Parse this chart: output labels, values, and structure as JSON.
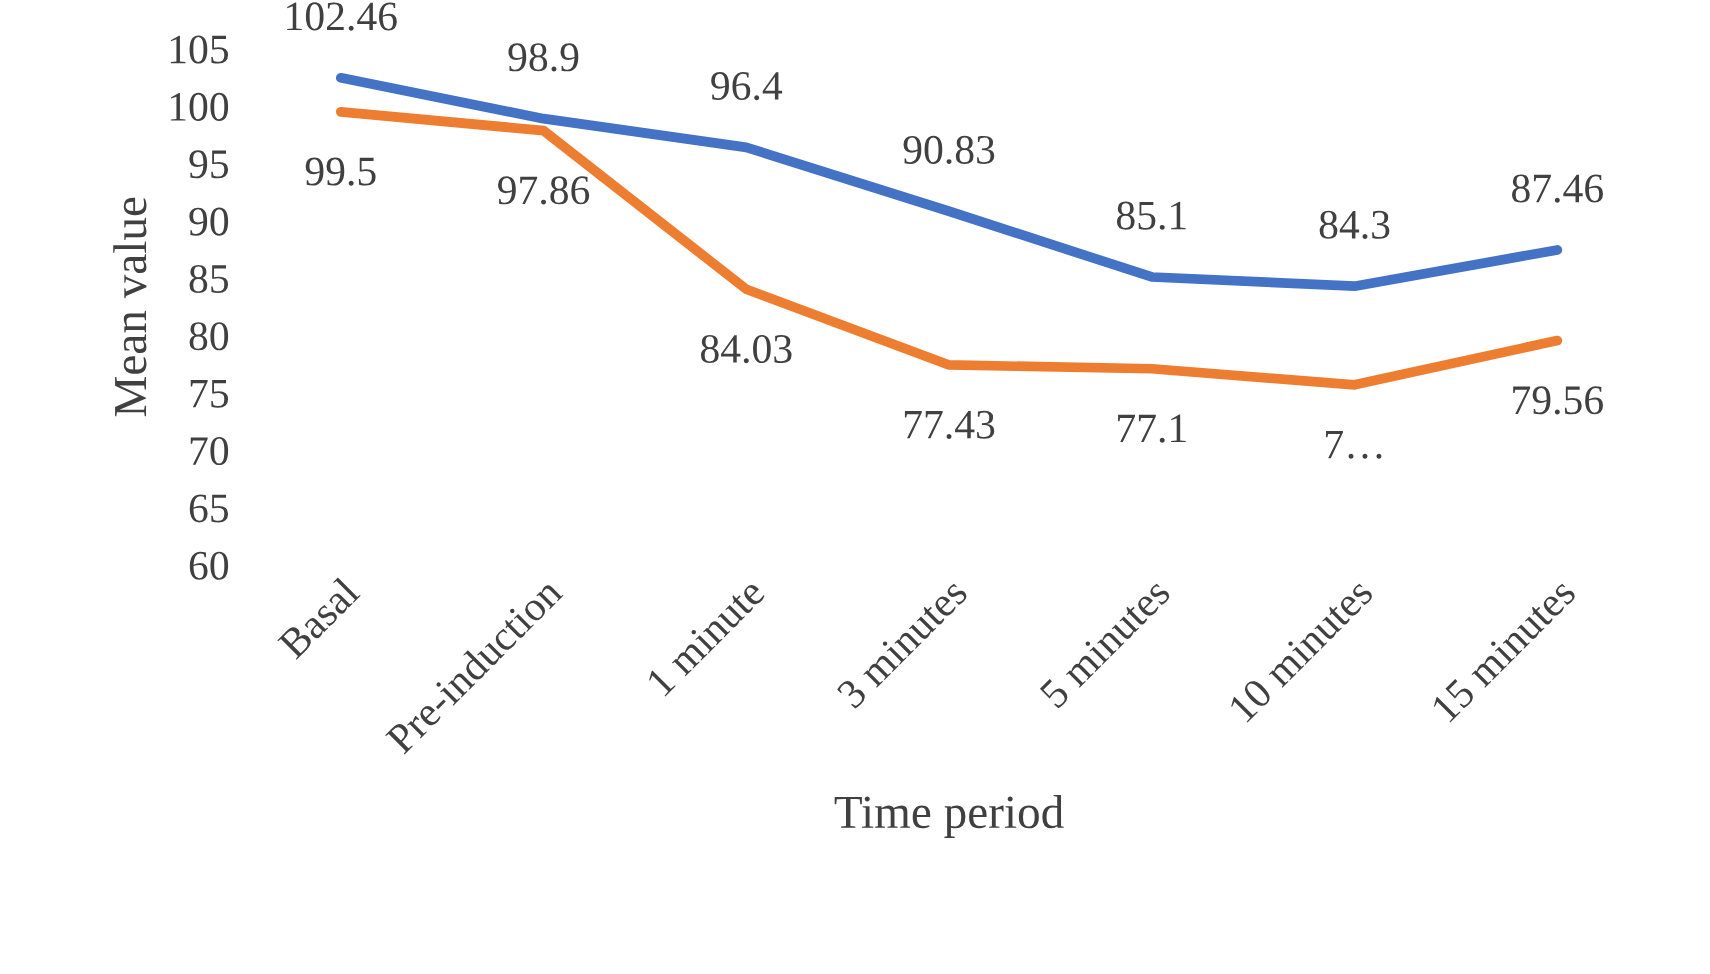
{
  "chart_data": {
    "type": "line",
    "xlabel": "Time period",
    "ylabel": "Mean value",
    "categories": [
      "Basal",
      "Pre-induction",
      "1 minute",
      "3 minutes",
      "5 minutes",
      "10 minutes",
      "15 minutes"
    ],
    "series": [
      {
        "color": "#4472c4",
        "values": [
          102.46,
          98.9,
          96.4,
          90.83,
          85.1,
          84.3,
          87.46
        ],
        "value_labels": [
          "102.46",
          "98.9",
          "96.4",
          "90.83",
          "85.1",
          "84.3",
          "87.46"
        ]
      },
      {
        "color": "#ed7d31",
        "values": [
          99.5,
          97.86,
          84.03,
          77.43,
          77.1,
          75.7,
          79.56
        ],
        "value_labels": [
          "99.5",
          "97.86",
          "84.03",
          "77.43",
          "77.1",
          "7…",
          "79.56"
        ]
      }
    ],
    "ylim": [
      60,
      105
    ],
    "yticks": [
      60,
      65,
      70,
      75,
      80,
      85,
      90,
      95,
      100,
      105
    ],
    "grid": false,
    "legend": false,
    "marker": "none",
    "line_style": "solid"
  }
}
